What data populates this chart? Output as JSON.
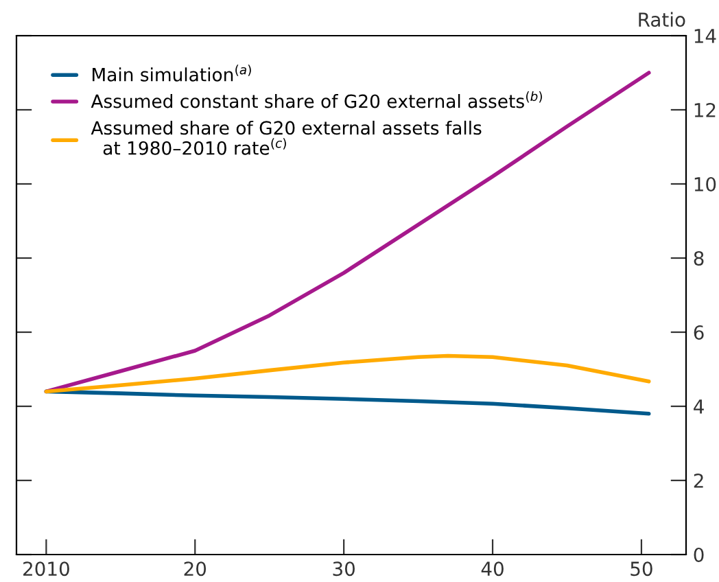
{
  "chart_data": {
    "type": "line",
    "ylabel": "Ratio",
    "xlim": [
      2008,
      2053
    ],
    "xticks": [
      2010,
      {
        "value": 2020,
        "label": "20"
      },
      {
        "value": 2030,
        "label": "30"
      },
      {
        "value": 2040,
        "label": "40"
      },
      {
        "value": 2050,
        "label": "50"
      }
    ],
    "ylim": [
      0,
      14
    ],
    "yticks": [
      0,
      2,
      4,
      6,
      8,
      10,
      12,
      14
    ],
    "grid": false,
    "legend": "top left",
    "marker": "none",
    "line_style": "solid",
    "series": [
      {
        "name": "Main simulation$^{(a)}$",
        "color": "#005a8c",
        "x": [
          2010,
          2015,
          2020,
          2025,
          2030,
          2035,
          2040,
          2045,
          2050.5
        ],
        "values": [
          4.4,
          4.35,
          4.29,
          4.25,
          4.2,
          4.14,
          4.07,
          3.95,
          3.8
        ]
      },
      {
        "name": "Assumed constant share of G20 external assets$^{(b)}$",
        "color": "#a6198c",
        "x": [
          2010,
          2015,
          2020,
          2025,
          2030,
          2035,
          2040,
          2045,
          2050.5
        ],
        "values": [
          4.4,
          4.95,
          5.5,
          6.45,
          7.6,
          8.9,
          10.2,
          11.55,
          13.0
        ]
      },
      {
        "name": "Assumed share of G20 external assets falls\n  at 1980–2010 rate$^{(c)}$",
        "color": "#ffaa00",
        "x": [
          2010,
          2015,
          2020,
          2025,
          2030,
          2035,
          2037,
          2040,
          2045,
          2050.5
        ],
        "values": [
          4.4,
          4.57,
          4.75,
          4.97,
          5.18,
          5.33,
          5.36,
          5.33,
          5.1,
          4.67
        ]
      }
    ]
  }
}
